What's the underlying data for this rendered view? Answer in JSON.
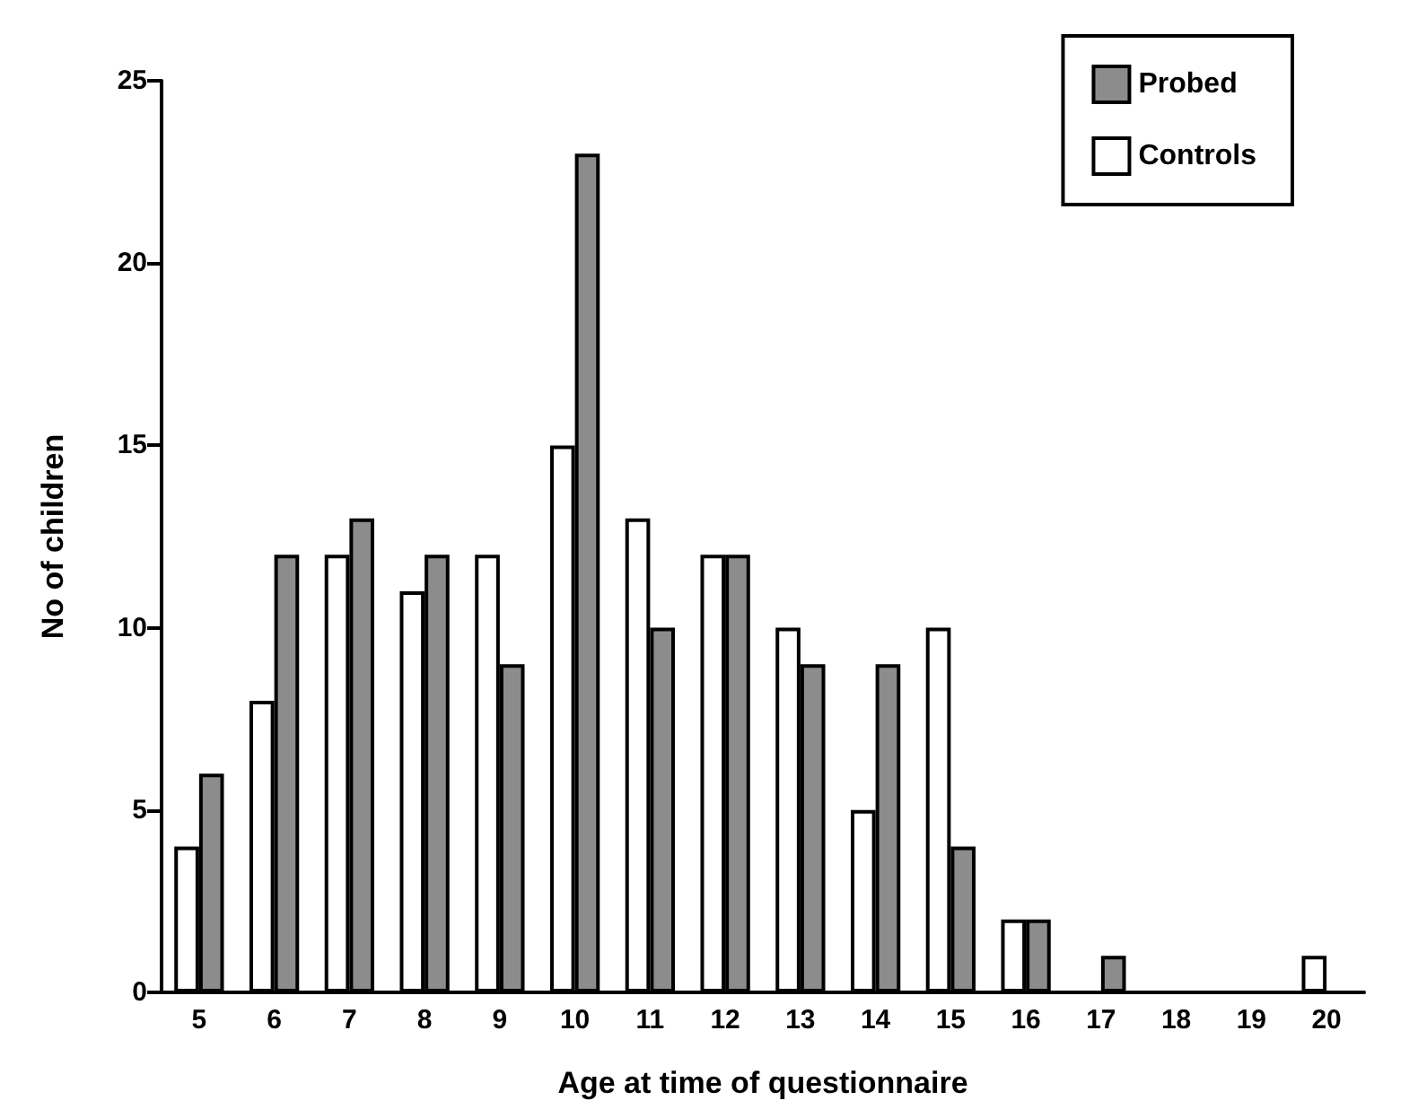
{
  "chart_data": {
    "type": "bar",
    "xlabel": "Age at time of questionnaire",
    "ylabel": "No of children",
    "categories": [
      "5",
      "6",
      "7",
      "8",
      "9",
      "10",
      "11",
      "12",
      "13",
      "14",
      "15",
      "16",
      "17",
      "18",
      "19",
      "20"
    ],
    "series": [
      {
        "name": "Controls",
        "color": "#ffffff",
        "values": [
          4,
          8,
          12,
          11,
          12,
          15,
          13,
          12,
          10,
          5,
          10,
          2,
          0,
          0,
          0,
          1
        ]
      },
      {
        "name": "Probed",
        "color": "#8c8c8c",
        "values": [
          6,
          12,
          13,
          12,
          9,
          23,
          10,
          12,
          9,
          9,
          4,
          2,
          1,
          0,
          0,
          0
        ]
      }
    ],
    "ylim": [
      0,
      25
    ],
    "yticks": [
      0,
      5,
      10,
      15,
      20,
      25
    ],
    "grid": false,
    "legend": "top right"
  }
}
